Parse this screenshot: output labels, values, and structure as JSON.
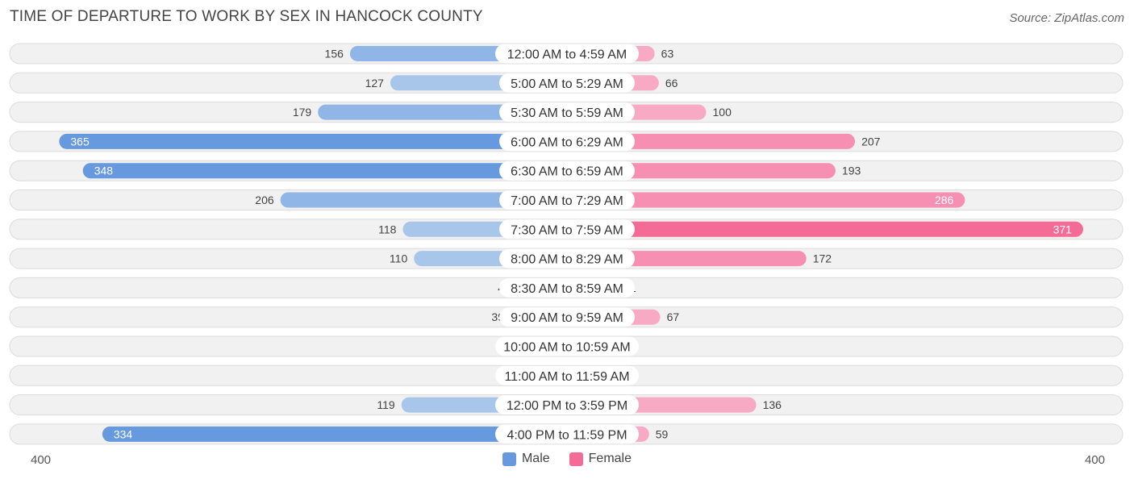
{
  "header": {
    "title": "TIME OF DEPARTURE TO WORK BY SEX IN HANCOCK COUNTY",
    "source": "Source: ZipAtlas.com"
  },
  "colors": {
    "male_dark": "#6699dd",
    "male_light": "#a7c6ea",
    "female_dark": "#f56b97",
    "female_light": "#f8aac4",
    "row_bg": "#f1f1f1",
    "row_border": "#dcdcdc"
  },
  "chart_data": {
    "type": "bar",
    "orientation": "horizontal-diverging",
    "categories": [
      "12:00 AM to 4:59 AM",
      "5:00 AM to 5:29 AM",
      "5:30 AM to 5:59 AM",
      "6:00 AM to 6:29 AM",
      "6:30 AM to 6:59 AM",
      "7:00 AM to 7:29 AM",
      "7:30 AM to 7:59 AM",
      "8:00 AM to 8:29 AM",
      "8:30 AM to 8:59 AM",
      "9:00 AM to 9:59 AM",
      "10:00 AM to 10:59 AM",
      "11:00 AM to 11:59 AM",
      "12:00 PM to 3:59 PM",
      "4:00 PM to 11:59 PM"
    ],
    "series": [
      {
        "name": "Male",
        "values": [
          156,
          127,
          179,
          365,
          348,
          206,
          118,
          110,
          4,
          39,
          3,
          0,
          119,
          334
        ]
      },
      {
        "name": "Female",
        "values": [
          63,
          66,
          100,
          207,
          193,
          286,
          371,
          172,
          1,
          67,
          8,
          0,
          136,
          59
        ]
      }
    ],
    "axis_max": 400,
    "axis_left_label": "400",
    "axis_right_label": "400",
    "legend_position": "bottom-center"
  }
}
